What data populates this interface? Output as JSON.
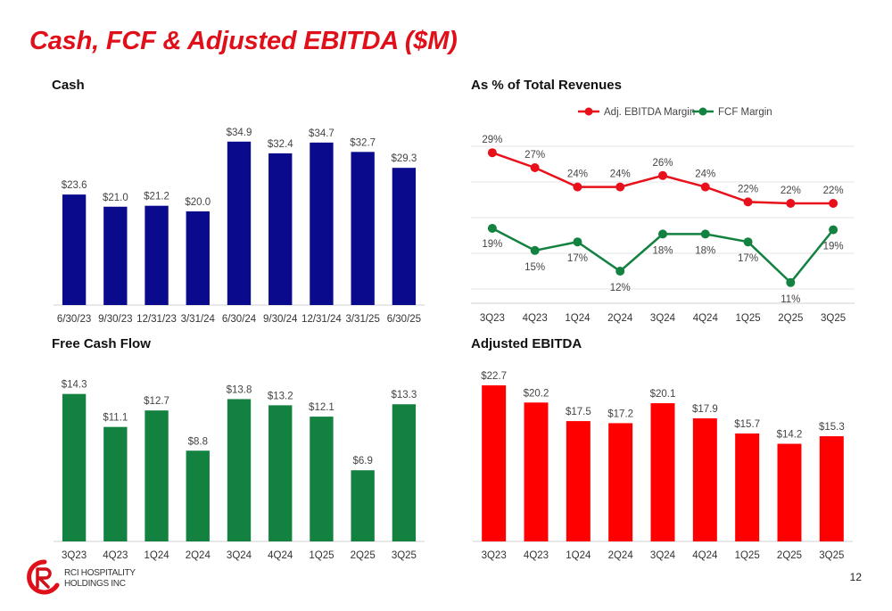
{
  "page": {
    "title": "Cash, FCF & Adjusted EBITDA ($M)",
    "page_number": "12",
    "logo_text": [
      "RCI HOSPITALITY",
      "HOLDINGS INC"
    ]
  },
  "colors": {
    "title_red": "#e0101a",
    "cash_bar": "#0a0a8c",
    "fcf_bar": "#138240",
    "ebitda_bar": "#ff0000",
    "ebitda_margin_line": "#e8101a",
    "fcf_margin_line": "#138240"
  },
  "chart_data": [
    {
      "id": "cash",
      "type": "bar",
      "title": "Cash",
      "categories": [
        "6/30/23",
        "9/30/23",
        "12/31/23",
        "3/31/24",
        "6/30/24",
        "9/30/24",
        "12/31/24",
        "3/31/25",
        "6/30/25"
      ],
      "values": [
        23.6,
        21.0,
        21.2,
        20.0,
        34.9,
        32.4,
        34.7,
        32.7,
        29.3
      ],
      "labels": [
        "$23.6",
        "$21.0",
        "$21.2",
        "$20.0",
        "$34.9",
        "$32.4",
        "$34.7",
        "$32.7",
        "$29.3"
      ],
      "ylim": [
        0,
        40
      ],
      "grid": false
    },
    {
      "id": "margins",
      "type": "line",
      "title": "As % of Total Revenues",
      "categories": [
        "3Q23",
        "4Q23",
        "1Q24",
        "2Q24",
        "3Q24",
        "4Q24",
        "1Q25",
        "2Q25",
        "3Q25"
      ],
      "series": [
        {
          "name": "Adj. EBITDA Margin",
          "values": [
            29,
            27,
            24,
            24,
            26,
            24,
            22,
            22,
            22
          ],
          "plot_values": [
            29.1,
            27.0,
            24.3,
            24.3,
            25.9,
            24.3,
            22.2,
            22.0,
            22.0
          ],
          "labels": [
            "29%",
            "27%",
            "24%",
            "24%",
            "26%",
            "24%",
            "22%",
            "22%",
            "22%"
          ],
          "label_position": "above"
        },
        {
          "name": "FCF Margin",
          "values": [
            19,
            15,
            17,
            12,
            18,
            18,
            17,
            11,
            19
          ],
          "plot_values": [
            18.5,
            15.4,
            16.6,
            12.5,
            17.7,
            17.7,
            16.6,
            10.9,
            18.3
          ],
          "labels": [
            "19%",
            "15%",
            "17%",
            "12%",
            "18%",
            "18%",
            "17%",
            "11%",
            "19%"
          ],
          "label_position": "alternate"
        }
      ],
      "ylim": [
        8,
        32
      ],
      "grid": true,
      "legend": "top-center"
    },
    {
      "id": "fcf",
      "type": "bar",
      "title": "Free Cash Flow",
      "categories": [
        "3Q23",
        "4Q23",
        "1Q24",
        "2Q24",
        "3Q24",
        "4Q24",
        "1Q25",
        "2Q25",
        "3Q25"
      ],
      "values": [
        14.3,
        11.1,
        12.7,
        8.8,
        13.8,
        13.2,
        12.1,
        6.9,
        13.3
      ],
      "labels": [
        "$14.3",
        "$11.1",
        "$12.7",
        "$8.8",
        "$13.8",
        "$13.2",
        "$12.1",
        "$6.9",
        "$13.3"
      ],
      "ylim": [
        0,
        16
      ],
      "grid": false
    },
    {
      "id": "ebitda",
      "type": "bar",
      "title": "Adjusted EBITDA",
      "categories": [
        "3Q23",
        "4Q23",
        "1Q24",
        "2Q24",
        "3Q24",
        "4Q24",
        "1Q25",
        "2Q25",
        "3Q25"
      ],
      "values": [
        22.7,
        20.2,
        17.5,
        17.2,
        20.1,
        17.9,
        15.7,
        14.2,
        15.3
      ],
      "labels": [
        "$22.7",
        "$20.2",
        "$17.5",
        "$17.2",
        "$20.1",
        "$17.9",
        "$15.7",
        "$14.2",
        "$15.3"
      ],
      "ylim": [
        0,
        24
      ],
      "grid": false
    }
  ]
}
